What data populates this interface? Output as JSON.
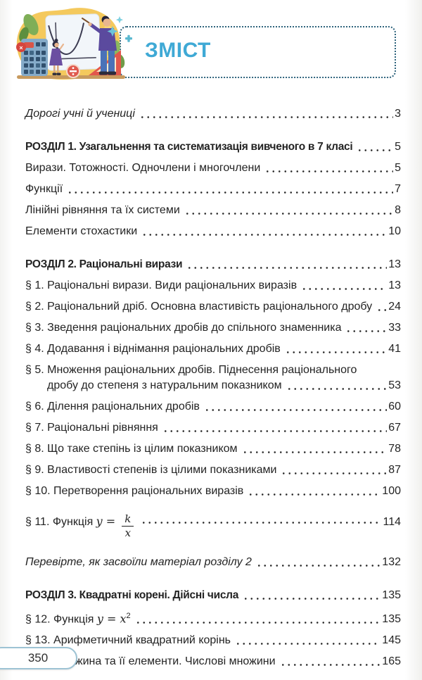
{
  "colors": {
    "accent_blue": "#3fa9d5",
    "box_border": "#2e637c",
    "badge_border": "#9dc3d4",
    "text": "#232323"
  },
  "icons": {
    "calculator_close_glyph": "×",
    "divide_badge_glyph": "÷"
  },
  "header": {
    "title": "ЗМІСТ"
  },
  "toc": {
    "entries": [
      {
        "class": "italic gap-lg",
        "name": "toc-entry-intro",
        "text": "Дорогі учні й учениці",
        "page": "3"
      },
      {
        "class": "chapter gap-lg",
        "name": "toc-chapter-1",
        "text": "РОЗДІЛ 1. Узагальнення та систематизація вивченого в 7 класі",
        "page": "5"
      },
      {
        "text": "Вирази. Тотожності. Одночлени і многочлени",
        "page": "5"
      },
      {
        "text": "Функції",
        "page": "7"
      },
      {
        "text": "Лінійні рівняння та їх системи",
        "page": "8"
      },
      {
        "text": "Елементи стохастики",
        "page": "10"
      },
      {
        "class": "chapter gap-lg",
        "name": "toc-chapter-2",
        "text": "РОЗДІЛ 2. Раціональні вирази",
        "page": "13"
      },
      {
        "text": "§ 1. Раціональні вирази. Види раціональних виразів",
        "page": "13"
      },
      {
        "text": "§ 2. Раціональний дріб. Основна властивість раціонального дробу",
        "page": "24"
      },
      {
        "text": "§ 3. Зведення раціональних дробів до спільного знаменника",
        "page": "33"
      },
      {
        "text": "§ 4. Додавання і віднімання раціональних дробів",
        "page": "41"
      },
      {
        "text": "§ 5. Множення раціональних дробів. Піднесення раціонального",
        "line2": "дробу до степеня з натуральним показником",
        "page": "53"
      },
      {
        "text": "§ 6. Ділення раціональних дробів",
        "page": "60"
      },
      {
        "text": "§ 7. Раціональні рівняння",
        "page": "67"
      },
      {
        "text": "§ 8. Що таке степінь із цілим показником",
        "page": "78"
      },
      {
        "text": "§ 9. Властивості степенів із цілими показниками",
        "page": "87"
      },
      {
        "text": "§ 10. Перетворення раціональних виразів",
        "page": "100"
      },
      {
        "class": "frac-row",
        "name": "toc-entry-function-k-over-x",
        "text": "§ 11. Функція ",
        "math": {
          "type": "frac",
          "lhs": "y = ",
          "num": "k",
          "den": "x"
        },
        "page": "114"
      },
      {
        "class": "italic gap-lg",
        "name": "toc-entry-check-section-2",
        "text": "Перевірте, як засвоїли матеріал розділу 2",
        "page": "132"
      },
      {
        "class": "chapter gap-lg",
        "name": "toc-chapter-3",
        "text": "РОЗДІЛ 3. Квадратні корені. Дійсні числа",
        "page": "135"
      },
      {
        "name": "toc-entry-function-x-squared",
        "text": "§ 12. Функція ",
        "math": {
          "type": "sup",
          "base": "y = x",
          "exp": "2"
        },
        "page": "135"
      },
      {
        "text": "§ 13. Арифметичний квадратний корінь",
        "page": "145"
      },
      {
        "text": "§ 14. Множина та її елементи. Числові множини",
        "page": "165"
      }
    ]
  },
  "footer": {
    "page_number": "350"
  }
}
